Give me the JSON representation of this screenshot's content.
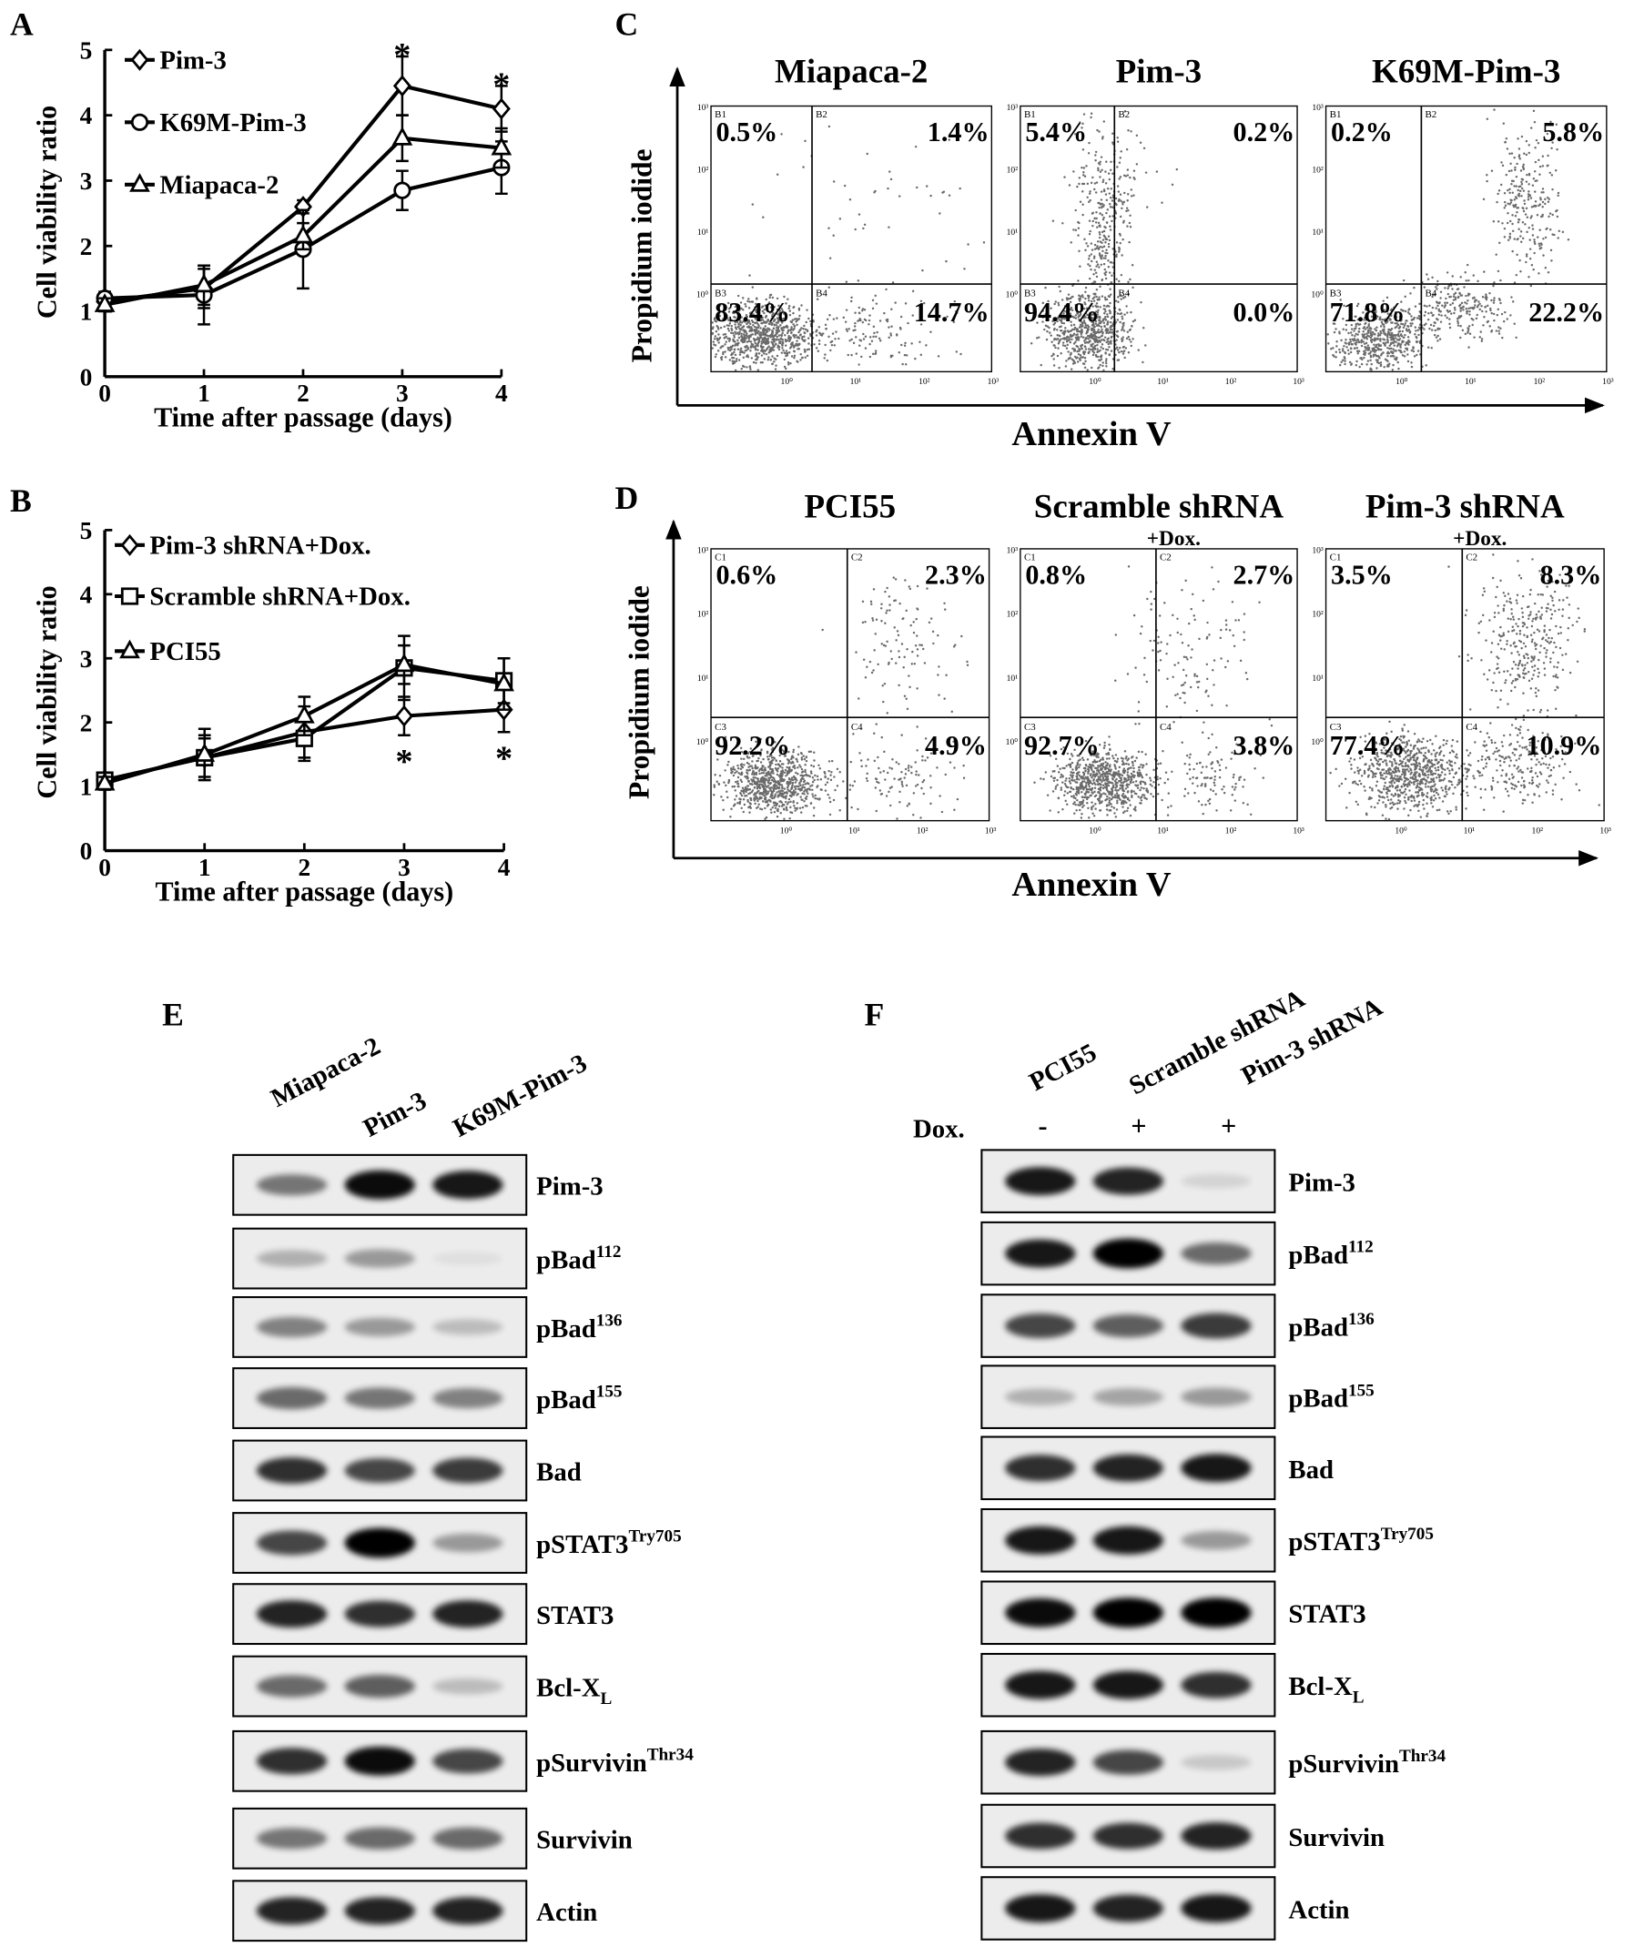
{
  "chart_data": [
    {
      "type": "line",
      "panel": "A",
      "xlabel": "Time after passage (days)",
      "ylabel": "Cell viability ratio",
      "x": [
        0,
        1,
        2,
        3,
        4
      ],
      "xlim": [
        0,
        4
      ],
      "xticks": [
        0,
        1,
        2,
        3,
        4
      ],
      "ylim": [
        0,
        5
      ],
      "yticks": [
        0,
        1,
        2,
        3,
        4,
        5
      ],
      "series": [
        {
          "name": "Pim-3",
          "color": "#000000",
          "marker": "diamond",
          "values": [
            1.15,
            1.35,
            2.6,
            4.45,
            4.1
          ],
          "errors": [
            0.1,
            0.3,
            0.1,
            0.45,
            0.35
          ]
        },
        {
          "name": "K69M-Pim-3",
          "color": "#000000",
          "marker": "circle",
          "values": [
            1.2,
            1.25,
            1.95,
            2.85,
            3.2
          ],
          "errors": [
            0.1,
            0.45,
            0.6,
            0.3,
            0.4
          ]
        },
        {
          "name": "Miapaca-2",
          "color": "#000000",
          "marker": "triangle",
          "values": [
            1.1,
            1.4,
            2.15,
            3.65,
            3.5
          ],
          "errors": [
            0.1,
            0.3,
            0.2,
            0.35,
            0.3
          ]
        }
      ],
      "annotations": [
        {
          "text": "*",
          "x": 3,
          "position": "above"
        },
        {
          "text": "*",
          "x": 4,
          "position": "above"
        }
      ]
    },
    {
      "type": "line",
      "panel": "B",
      "xlabel": "Time after passage (days)",
      "ylabel": "Cell viability ratio",
      "x": [
        0,
        1,
        2,
        3,
        4
      ],
      "xlim": [
        0,
        4
      ],
      "xticks": [
        0,
        1,
        2,
        3,
        4
      ],
      "ylim": [
        0,
        5
      ],
      "yticks": [
        0,
        1,
        2,
        3,
        4,
        5
      ],
      "series": [
        {
          "name": "Pim-3 shRNA+Dox.",
          "color": "#000000",
          "marker": "diamond",
          "values": [
            1.1,
            1.45,
            1.85,
            2.1,
            2.2
          ],
          "errors": [
            0.1,
            0.35,
            0.4,
            0.3,
            0.35
          ]
        },
        {
          "name": "Scramble shRNA+Dox.",
          "color": "#000000",
          "marker": "square",
          "values": [
            1.1,
            1.45,
            1.75,
            2.85,
            2.65
          ],
          "errors": [
            0.1,
            0.3,
            0.35,
            0.5,
            0.35
          ]
        },
        {
          "name": "PCI55",
          "color": "#000000",
          "marker": "triangle",
          "values": [
            1.05,
            1.5,
            2.1,
            2.9,
            2.6
          ],
          "errors": [
            0.1,
            0.4,
            0.3,
            0.3,
            0.4
          ]
        }
      ],
      "annotations": [
        {
          "text": "*",
          "x": 3,
          "position": "below"
        },
        {
          "text": "*",
          "x": 4,
          "position": "below"
        }
      ]
    }
  ],
  "flow": [
    {
      "panel": "C",
      "xlabel": "Annexin V",
      "ylabel": "Propidium iodide",
      "log_ticks": [
        "10⁰",
        "10¹",
        "10²",
        "10³"
      ],
      "plots": [
        {
          "title": "Miapaca-2",
          "quadrants": [
            "B1",
            "B2",
            "B3",
            "B4"
          ],
          "percents": [
            "0.5%",
            "1.4%",
            "83.4%",
            "14.7%"
          ]
        },
        {
          "title": "Pim-3",
          "quadrants": [
            "B1",
            "B2",
            "B3",
            "B4"
          ],
          "percents": [
            "5.4%",
            "0.2%",
            "94.4%",
            "0.0%"
          ]
        },
        {
          "title": "K69M-Pim-3",
          "quadrants": [
            "B1",
            "B2",
            "B3",
            "B4"
          ],
          "percents": [
            "0.2%",
            "5.8%",
            "71.8%",
            "22.2%"
          ]
        }
      ]
    },
    {
      "panel": "D",
      "xlabel": "Annexin V",
      "ylabel": "Propidium iodide",
      "log_ticks": [
        "10⁰",
        "10¹",
        "10²",
        "10³"
      ],
      "plots": [
        {
          "title": "PCI55",
          "quadrants": [
            "C1",
            "C2",
            "C3",
            "C4"
          ],
          "percents": [
            "0.6%",
            "2.3%",
            "92.2%",
            "4.9%"
          ]
        },
        {
          "title": "Scramble shRNA",
          "subtitle": "+Dox.",
          "quadrants": [
            "C1",
            "C2",
            "C3",
            "C4"
          ],
          "percents": [
            "0.8%",
            "2.7%",
            "92.7%",
            "3.8%"
          ]
        },
        {
          "title": "Pim-3 shRNA",
          "subtitle": "+Dox.",
          "quadrants": [
            "C1",
            "C2",
            "C3",
            "C4"
          ],
          "percents": [
            "3.5%",
            "8.3%",
            "77.4%",
            "10.9%"
          ]
        }
      ]
    }
  ],
  "blots": [
    {
      "panel": "E",
      "lanes": [
        "Miapaca-2",
        "Pim-3",
        "K69M-Pim-3"
      ],
      "rows": [
        {
          "text": "Pim-3"
        },
        {
          "text": "pBad",
          "sup": "112"
        },
        {
          "text": "pBad",
          "sup": "136"
        },
        {
          "text": "pBad",
          "sup": "155"
        },
        {
          "text": "Bad"
        },
        {
          "text": "pSTAT3",
          "sup": "Try705"
        },
        {
          "text": "STAT3"
        },
        {
          "text": "Bcl-X",
          "sub": "L"
        },
        {
          "text": "pSurvivin",
          "sup": "Thr34"
        },
        {
          "text": "Survivin"
        },
        {
          "text": "Actin"
        }
      ]
    },
    {
      "panel": "F",
      "lanes": [
        "PCI55",
        "Scramble shRNA",
        "Pim-3 shRNA"
      ],
      "treatment": {
        "label": "Dox.",
        "values": [
          "-",
          "+",
          "+"
        ]
      },
      "rows": [
        {
          "text": "Pim-3"
        },
        {
          "text": "pBad",
          "sup": "112"
        },
        {
          "text": "pBad",
          "sup": "136"
        },
        {
          "text": "pBad",
          "sup": "155"
        },
        {
          "text": "Bad"
        },
        {
          "text": "pSTAT3",
          "sup": "Try705"
        },
        {
          "text": "STAT3"
        },
        {
          "text": "Bcl-X",
          "sub": "L"
        },
        {
          "text": "pSurvivin",
          "sup": "Thr34"
        },
        {
          "text": "Survivin"
        },
        {
          "text": "Actin"
        }
      ]
    }
  ]
}
